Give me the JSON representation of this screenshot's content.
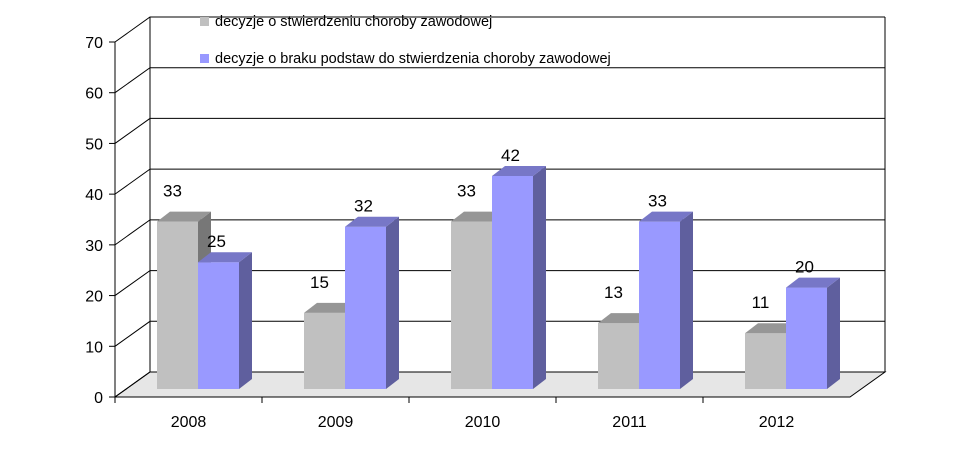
{
  "chart_data": {
    "type": "bar",
    "categories": [
      "2008",
      "2009",
      "2010",
      "2011",
      "2012"
    ],
    "series": [
      {
        "name": "decyzje o stwierdzeniu choroby zawodowej",
        "values": [
          33,
          15,
          33,
          13,
          11
        ],
        "color": "#c0c0c0"
      },
      {
        "name": "decyzje o braku podstaw do stwierdzenia choroby zawodowej",
        "values": [
          25,
          32,
          42,
          33,
          20
        ],
        "color": "#9999ff"
      }
    ],
    "yticks": [
      "0",
      "10",
      "20",
      "30",
      "40",
      "50",
      "60",
      "70"
    ],
    "ylim": [
      0,
      70
    ],
    "grid": true,
    "legend": "top",
    "title": "",
    "xlabel": "",
    "ylabel": ""
  }
}
